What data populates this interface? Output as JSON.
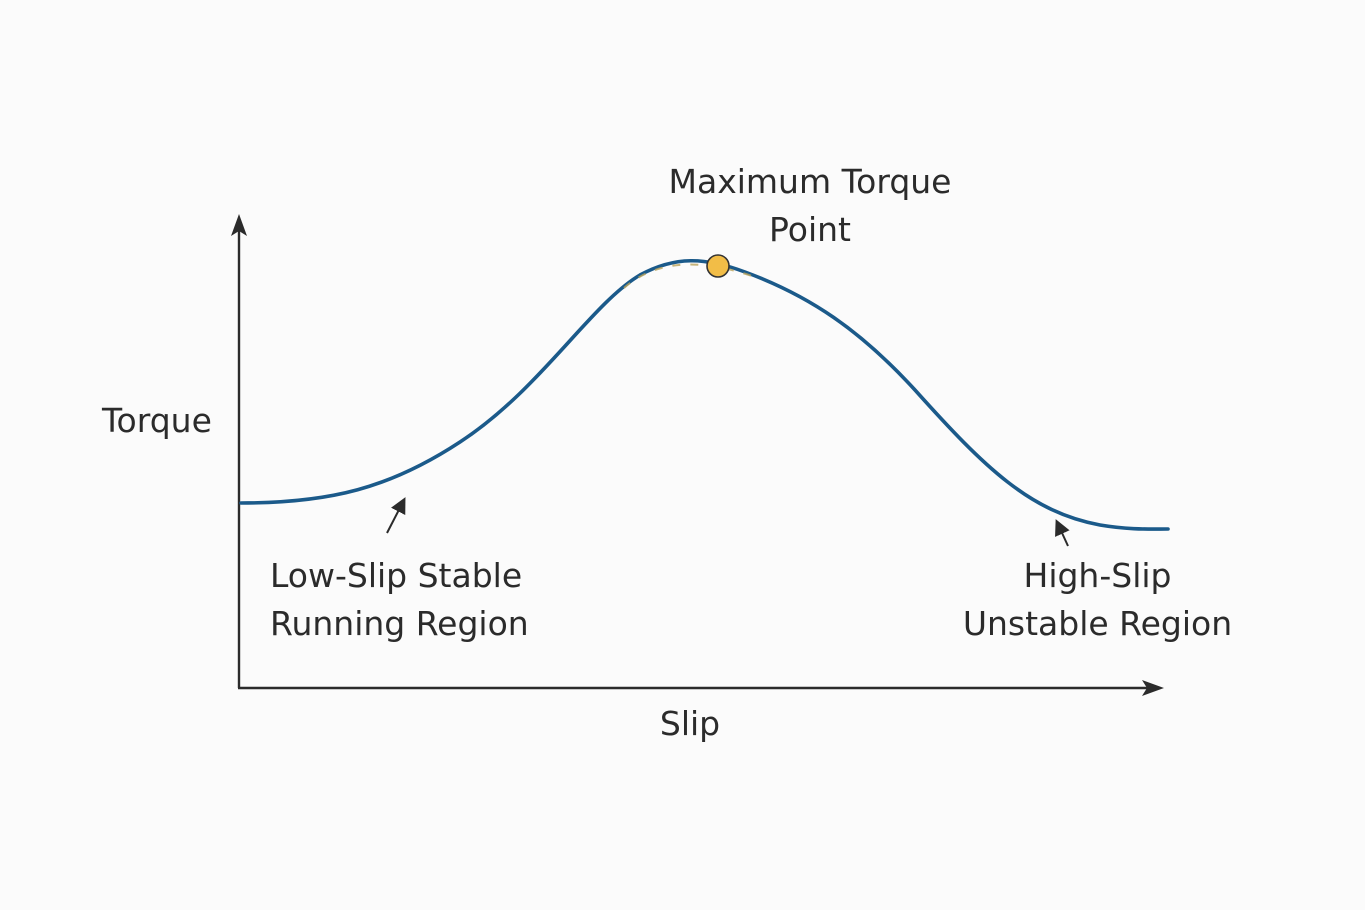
{
  "diagram": {
    "axis_y_label": "Torque",
    "axis_x_label": "Slip",
    "annotations": {
      "max_point_line1": "Maximum Torque",
      "max_point_line2": "Point",
      "low_slip_line1": "Low-Slip Stable",
      "low_slip_line2": "Running Region",
      "high_slip_line1": "High-Slip",
      "high_slip_line2": "Unstable Region"
    },
    "colors": {
      "curve": "#1b5a8a",
      "axes": "#2b2b2b",
      "marker": "#f2bd47",
      "marker_outline": "#333333"
    }
  }
}
